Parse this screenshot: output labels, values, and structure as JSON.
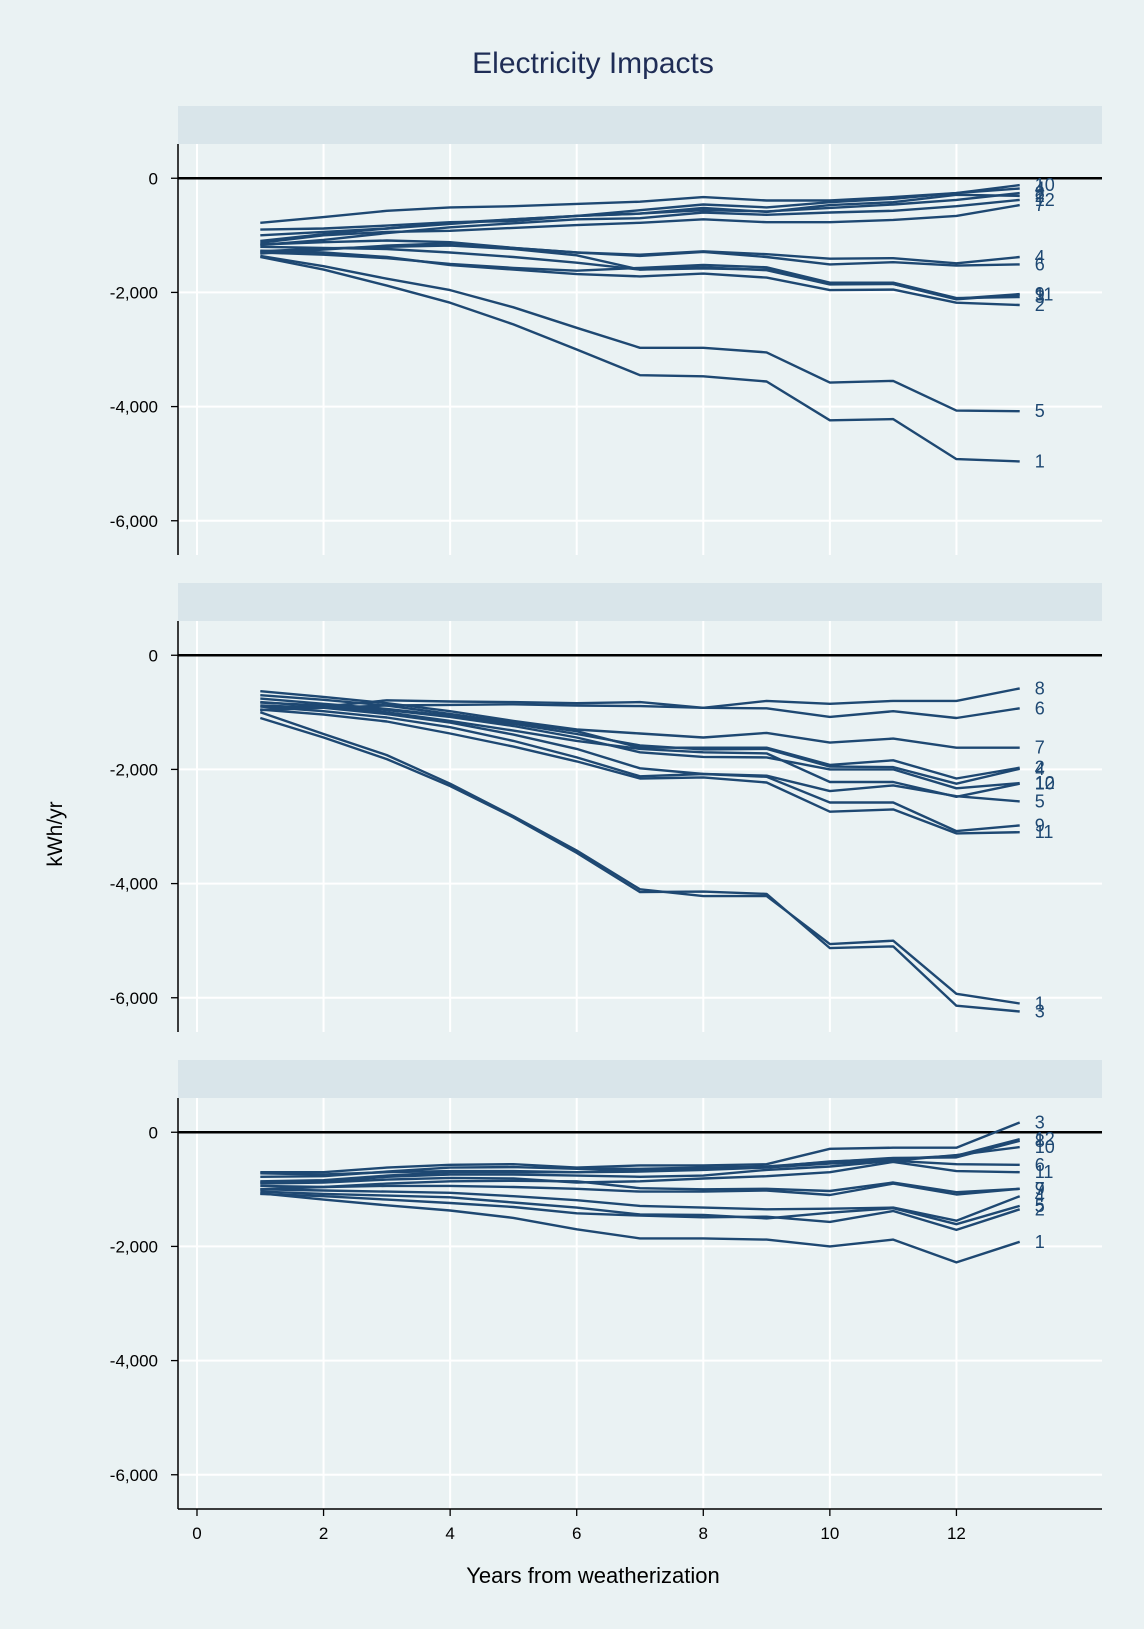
{
  "chart_data": {
    "type": "line",
    "title": "Electricity Impacts",
    "xlabel": "Years from weatherization",
    "ylabel": "kWh/yr",
    "x_ticks": [
      0,
      2,
      4,
      6,
      8,
      10,
      12
    ],
    "y_ticks": [
      0,
      -2000,
      -4000,
      -6000
    ],
    "y_tick_labels": [
      "0",
      "-2,000",
      "-4,000",
      "-6,000"
    ],
    "x_tick_labels": [
      "0",
      "2",
      "4",
      "6",
      "8",
      "10",
      "12"
    ],
    "xlim": [
      -0.3,
      14.3
    ],
    "ylim": [
      -6600,
      600
    ],
    "grid": true,
    "reference_line": 0,
    "line_color": "#1e4872",
    "background_color": "#eaf2f3",
    "panel_header_color": "#d9e5ea",
    "x": [
      1,
      2,
      3,
      4,
      5,
      6,
      7,
      8,
      9,
      10,
      11,
      12,
      13
    ],
    "panels": [
      {
        "header": "",
        "series": [
          {
            "label": "1",
            "values": [
              -1380,
              -1600,
              -1880,
              -2180,
              -2560,
              -3000,
              -3450,
              -3470,
              -3560,
              -4240,
              -4220,
              -4920,
              -4960
            ]
          },
          {
            "label": "5",
            "values": [
              -1360,
              -1540,
              -1760,
              -1960,
              -2260,
              -2620,
              -2970,
              -2970,
              -3050,
              -3580,
              -3550,
              -4070,
              -4080
            ]
          },
          {
            "label": "2",
            "values": [
              -1270,
              -1300,
              -1380,
              -1520,
              -1600,
              -1680,
              -1720,
              -1670,
              -1740,
              -1960,
              -1950,
              -2180,
              -2220
            ]
          },
          {
            "label": "3",
            "values": [
              -1300,
              -1340,
              -1400,
              -1500,
              -1570,
              -1620,
              -1570,
              -1520,
              -1560,
              -1830,
              -1830,
              -2100,
              -2080
            ]
          },
          {
            "label": "9",
            "values": [
              -1200,
              -1220,
              -1240,
              -1300,
              -1380,
              -1480,
              -1600,
              -1560,
              -1610,
              -1860,
              -1850,
              -2110,
              -2030
            ]
          },
          {
            "label": "11",
            "values": [
              -1280,
              -1230,
              -1200,
              -1180,
              -1240,
              -1350,
              -1600,
              -1580,
              -1600,
              -1850,
              -1850,
              -2120,
              -2040
            ]
          },
          {
            "label": "4",
            "values": [
              -1320,
              -1250,
              -1180,
              -1140,
              -1220,
              -1300,
              -1340,
              -1280,
              -1330,
              -1410,
              -1400,
              -1490,
              -1380
            ]
          },
          {
            "label": "6",
            "values": [
              -1160,
              -1120,
              -1090,
              -1120,
              -1220,
              -1300,
              -1360,
              -1290,
              -1380,
              -1510,
              -1470,
              -1530,
              -1510
            ]
          },
          {
            "label": "7",
            "values": [
              -1130,
              -1000,
              -940,
              -920,
              -870,
              -820,
              -780,
              -720,
              -770,
              -770,
              -730,
              -660,
              -470
            ]
          },
          {
            "label": "12",
            "values": [
              -1170,
              -1080,
              -960,
              -860,
              -790,
              -720,
              -700,
              -600,
              -640,
              -600,
              -570,
              -490,
              -380
            ]
          },
          {
            "label": "8",
            "values": [
              -1100,
              -980,
              -880,
              -780,
              -720,
              -660,
              -620,
              -560,
              -580,
              -520,
              -460,
              -380,
              -260
            ]
          },
          {
            "label": "2",
            "values": [
              -1000,
              -940,
              -880,
              -800,
              -720,
              -660,
              -620,
              -520,
              -590,
              -470,
              -420,
              -290,
              -310
            ]
          },
          {
            "label": "10",
            "values": [
              -780,
              -680,
              -570,
              -510,
              -490,
              -450,
              -410,
              -330,
              -390,
              -390,
              -330,
              -260,
              -120
            ]
          },
          {
            "label": "4",
            "values": [
              -900,
              -880,
              -830,
              -770,
              -750,
              -660,
              -560,
              -460,
              -510,
              -420,
              -360,
              -260,
              -180
            ]
          }
        ]
      },
      {
        "header": "",
        "series": [
          {
            "label": "3",
            "values": [
              -1100,
              -1440,
              -1820,
              -2290,
              -2840,
              -3460,
              -4150,
              -4140,
              -4180,
              -5130,
              -5100,
              -6140,
              -6240
            ]
          },
          {
            "label": "1",
            "values": [
              -1000,
              -1380,
              -1750,
              -2250,
              -2820,
              -3420,
              -4100,
              -4220,
              -4220,
              -5060,
              -5000,
              -5930,
              -6100
            ]
          },
          {
            "label": "11",
            "values": [
              -950,
              -1040,
              -1160,
              -1370,
              -1600,
              -1860,
              -2160,
              -2140,
              -2230,
              -2740,
              -2700,
              -3120,
              -3100
            ]
          },
          {
            "label": "9",
            "values": [
              -900,
              -980,
              -1090,
              -1260,
              -1500,
              -1790,
              -2120,
              -2080,
              -2130,
              -2580,
              -2580,
              -3080,
              -2980
            ]
          },
          {
            "label": "5",
            "values": [
              -880,
              -920,
              -1030,
              -1180,
              -1390,
              -1640,
              -1980,
              -2080,
              -2110,
              -2380,
              -2280,
              -2470,
              -2560
            ]
          },
          {
            "label": "10",
            "values": [
              -820,
              -900,
              -1000,
              -1150,
              -1320,
              -1500,
              -1640,
              -1700,
              -1720,
              -2220,
              -2220,
              -2480,
              -2250
            ]
          },
          {
            "label": "12",
            "values": [
              -830,
              -880,
              -960,
              -1080,
              -1240,
              -1440,
              -1700,
              -1780,
              -1790,
              -2000,
              -2000,
              -2330,
              -2240
            ]
          },
          {
            "label": "4",
            "values": [
              -760,
              -850,
              -940,
              -1060,
              -1200,
              -1380,
              -1580,
              -1650,
              -1640,
              -1950,
              -1960,
              -2250,
              -1990
            ]
          },
          {
            "label": "2",
            "values": [
              -700,
              -780,
              -880,
              -1030,
              -1180,
              -1330,
              -1620,
              -1620,
              -1620,
              -1920,
              -1840,
              -2160,
              -1970
            ]
          },
          {
            "label": "7",
            "values": [
              -630,
              -730,
              -840,
              -980,
              -1150,
              -1300,
              -1370,
              -1440,
              -1360,
              -1530,
              -1460,
              -1620,
              -1620
            ]
          },
          {
            "label": "6",
            "values": [
              -960,
              -920,
              -880,
              -870,
              -860,
              -880,
              -890,
              -920,
              -930,
              -1080,
              -980,
              -1100,
              -930
            ]
          },
          {
            "label": "8",
            "values": [
              -960,
              -900,
              -790,
              -810,
              -820,
              -840,
              -820,
              -920,
              -800,
              -850,
              -800,
              -800,
              -580
            ]
          }
        ]
      },
      {
        "header": "",
        "series": [
          {
            "label": "1",
            "values": [
              -1070,
              -1180,
              -1280,
              -1370,
              -1500,
              -1700,
              -1860,
              -1860,
              -1880,
              -2000,
              -1880,
              -2280,
              -1920
            ]
          },
          {
            "label": "2",
            "values": [
              -1080,
              -1120,
              -1180,
              -1240,
              -1310,
              -1420,
              -1460,
              -1490,
              -1480,
              -1570,
              -1380,
              -1710,
              -1350
            ]
          },
          {
            "label": "5",
            "values": [
              -1040,
              -1080,
              -1110,
              -1140,
              -1230,
              -1320,
              -1440,
              -1450,
              -1510,
              -1410,
              -1330,
              -1610,
              -1290
            ]
          },
          {
            "label": "4",
            "values": [
              -1000,
              -1020,
              -1040,
              -1060,
              -1120,
              -1190,
              -1290,
              -1320,
              -1350,
              -1340,
              -1320,
              -1550,
              -1120
            ]
          },
          {
            "label": "9",
            "values": [
              -940,
              -960,
              -940,
              -940,
              -960,
              -990,
              -1040,
              -1040,
              -1020,
              -1100,
              -900,
              -1090,
              -990
            ]
          },
          {
            "label": "7",
            "values": [
              -1000,
              -960,
              -900,
              -860,
              -850,
              -860,
              -980,
              -1000,
              -990,
              -1030,
              -880,
              -1050,
              -990
            ]
          },
          {
            "label": "11",
            "values": [
              -900,
              -880,
              -830,
              -800,
              -810,
              -880,
              -860,
              -810,
              -770,
              -700,
              -520,
              -680,
              -700
            ]
          },
          {
            "label": "6",
            "values": [
              -880,
              -870,
              -780,
              -740,
              -740,
              -760,
              -780,
              -760,
              -660,
              -600,
              -500,
              -560,
              -570
            ]
          },
          {
            "label": "10",
            "values": [
              -860,
              -840,
              -760,
              -700,
              -700,
              -700,
              -690,
              -660,
              -620,
              -550,
              -500,
              -400,
              -260
            ]
          },
          {
            "label": "8",
            "values": [
              -780,
              -770,
              -690,
              -620,
              -610,
              -640,
              -640,
              -620,
              -600,
              -520,
              -450,
              -440,
              -150
            ]
          },
          {
            "label": "12",
            "values": [
              -720,
              -740,
              -700,
              -680,
              -680,
              -700,
              -650,
              -650,
              -610,
              -510,
              -470,
              -410,
              -120
            ]
          },
          {
            "label": "3",
            "values": [
              -700,
              -700,
              -620,
              -570,
              -560,
              -620,
              -580,
              -580,
              -560,
              -290,
              -270,
              -270,
              170
            ]
          }
        ]
      }
    ]
  }
}
